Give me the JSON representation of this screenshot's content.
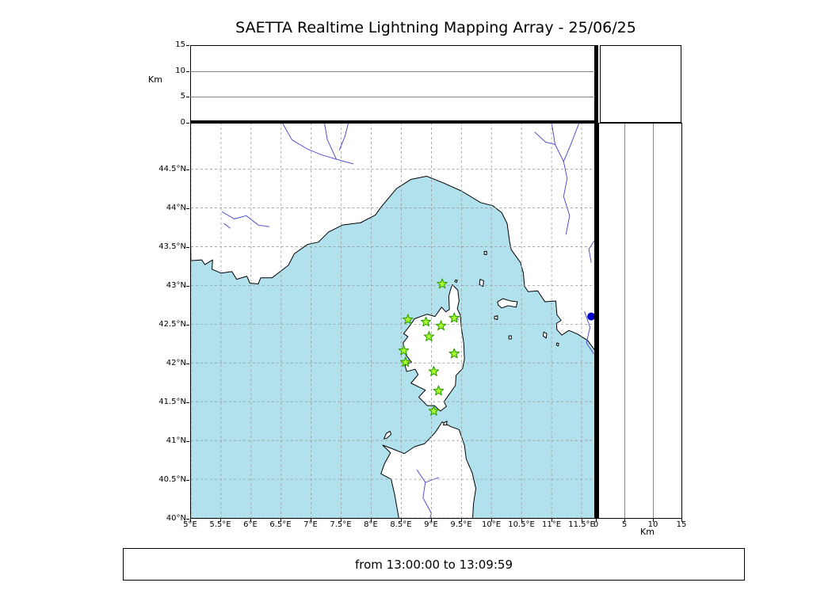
{
  "title": "SAETTA Realtime Lightning Mapping Array - 25/06/25",
  "footer": "from 13:00:00 to 13:09:59",
  "axes": {
    "km_left_label": "Km",
    "km_bottom_label": "Km",
    "altitude_max": 15,
    "altitude_ticks": [
      {
        "value": 0,
        "label": "0"
      },
      {
        "value": 5,
        "label": "5"
      },
      {
        "value": 10,
        "label": "10"
      },
      {
        "value": 15,
        "label": "15"
      }
    ],
    "altitude_gridlines": [
      5,
      10
    ],
    "longitude_ticks": [
      {
        "value": 5,
        "label": "5°E"
      },
      {
        "value": 5.5,
        "label": "5.5°E"
      },
      {
        "value": 6,
        "label": "6°E"
      },
      {
        "value": 6.5,
        "label": "6.5°E"
      },
      {
        "value": 7,
        "label": "7°E"
      },
      {
        "value": 7.5,
        "label": "7.5°E"
      },
      {
        "value": 8,
        "label": "8°E"
      },
      {
        "value": 8.5,
        "label": "8.5°E"
      },
      {
        "value": 9,
        "label": "9°E"
      },
      {
        "value": 9.5,
        "label": "9.5°E"
      },
      {
        "value": 10,
        "label": "10°E"
      },
      {
        "value": 10.5,
        "label": "10.5°E"
      },
      {
        "value": 11,
        "label": "11°E"
      },
      {
        "value": 11.5,
        "label": "11.5°E"
      }
    ],
    "latitude_ticks": [
      {
        "value": 44.5,
        "label": "44.5°N"
      },
      {
        "value": 44,
        "label": "44°N"
      },
      {
        "value": 43.5,
        "label": "43.5°N"
      },
      {
        "value": 43,
        "label": "43°N"
      },
      {
        "value": 42.5,
        "label": "42.5°N"
      },
      {
        "value": 42,
        "label": "42°N"
      },
      {
        "value": 41.5,
        "label": "41.5°N"
      },
      {
        "value": 41,
        "label": "41°N"
      },
      {
        "value": 40.5,
        "label": "40.5°N"
      },
      {
        "value": 40,
        "label": "40°N"
      }
    ]
  },
  "map_extent": {
    "lon_min": 5.0,
    "lon_max": 11.737,
    "lat_min": 40.0,
    "lat_max": 45.1
  },
  "stations": [
    {
      "lon": 9.18,
      "lat": 43.02
    },
    {
      "lon": 8.61,
      "lat": 42.56
    },
    {
      "lon": 8.91,
      "lat": 42.53
    },
    {
      "lon": 9.16,
      "lat": 42.48
    },
    {
      "lon": 9.38,
      "lat": 42.58
    },
    {
      "lon": 8.96,
      "lat": 42.34
    },
    {
      "lon": 8.54,
      "lat": 42.16
    },
    {
      "lon": 9.38,
      "lat": 42.12
    },
    {
      "lon": 8.57,
      "lat": 42.01
    },
    {
      "lon": 9.04,
      "lat": 41.89
    },
    {
      "lon": 9.12,
      "lat": 41.64
    },
    {
      "lon": 9.04,
      "lat": 41.38
    }
  ],
  "sensor_marker": {
    "lon": 11.66,
    "lat": 42.6
  },
  "colors": {
    "sea": "#b2e1ee",
    "land": "#ffffff",
    "coastline": "#000000",
    "river": "#4040cc",
    "grid": "#999999",
    "panel_grid": "#888888",
    "station_fill": "#adff2f",
    "station_stroke": "#2f9e00",
    "marker": "#0000cc"
  }
}
